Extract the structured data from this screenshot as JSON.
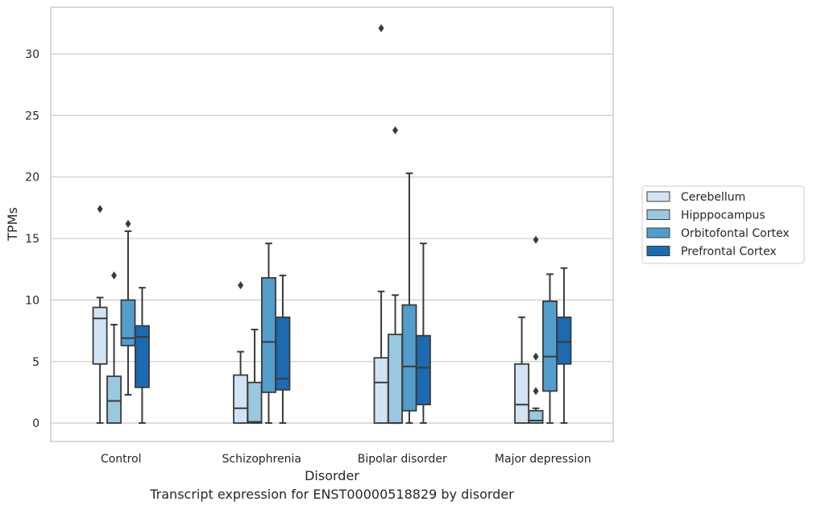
{
  "chart_data": {
    "type": "boxplot",
    "xlabel": "Disorder",
    "ylabel": "TPMs",
    "caption": "Transcript expression for ENST00000518829 by disorder",
    "categories": [
      "Control",
      "Schizophrenia",
      "Bipolar disorder",
      "Major depression"
    ],
    "ylim": [
      -1.5,
      33.8
    ],
    "yticks": [
      0,
      5,
      10,
      15,
      20,
      25,
      30
    ],
    "grid": true,
    "legend_position": "right",
    "series": [
      {
        "name": "Cerebellum",
        "color": "#d2e3f3",
        "boxes": [
          {
            "whisker_low": 0,
            "q1": 4.8,
            "median": 8.5,
            "q3": 9.4,
            "whisker_high": 10.2,
            "outliers": [
              17.4
            ]
          },
          {
            "whisker_low": 0,
            "q1": 0,
            "median": 1.2,
            "q3": 3.9,
            "whisker_high": 5.8,
            "outliers": [
              11.2
            ]
          },
          {
            "whisker_low": 0,
            "q1": 0,
            "median": 3.3,
            "q3": 5.3,
            "whisker_high": 10.7,
            "outliers": [
              32.1
            ]
          },
          {
            "whisker_low": 0,
            "q1": 0,
            "median": 1.5,
            "q3": 4.8,
            "whisker_high": 8.6,
            "outliers": []
          }
        ]
      },
      {
        "name": "Hipppocampus",
        "color": "#9ac8e0",
        "boxes": [
          {
            "whisker_low": 0,
            "q1": 0,
            "median": 1.8,
            "q3": 3.8,
            "whisker_high": 8.0,
            "outliers": [
              12.0
            ]
          },
          {
            "whisker_low": 0,
            "q1": 0,
            "median": 0.1,
            "q3": 3.3,
            "whisker_high": 7.6,
            "outliers": []
          },
          {
            "whisker_low": 0,
            "q1": 0,
            "median": 0,
            "q3": 7.2,
            "whisker_high": 10.4,
            "outliers": [
              23.8
            ]
          },
          {
            "whisker_low": 0,
            "q1": 0,
            "median": 0.2,
            "q3": 1.0,
            "whisker_high": 1.2,
            "outliers": [
              2.6,
              5.4,
              14.9
            ]
          }
        ]
      },
      {
        "name": "Orbitofontal Cortex",
        "color": "#529dcc",
        "boxes": [
          {
            "whisker_low": 2.3,
            "q1": 6.3,
            "median": 6.9,
            "q3": 10.0,
            "whisker_high": 15.6,
            "outliers": [
              16.2
            ]
          },
          {
            "whisker_low": 0,
            "q1": 2.5,
            "median": 6.6,
            "q3": 11.8,
            "whisker_high": 14.6,
            "outliers": []
          },
          {
            "whisker_low": 0,
            "q1": 1.0,
            "median": 4.6,
            "q3": 9.6,
            "whisker_high": 20.3,
            "outliers": []
          },
          {
            "whisker_low": 0,
            "q1": 2.6,
            "median": 5.4,
            "q3": 9.9,
            "whisker_high": 12.1,
            "outliers": []
          }
        ]
      },
      {
        "name": "Prefrontal Cortex",
        "color": "#1c6aaf",
        "boxes": [
          {
            "whisker_low": 0,
            "q1": 2.9,
            "median": 7.0,
            "q3": 7.9,
            "whisker_high": 11.0,
            "outliers": []
          },
          {
            "whisker_low": 0,
            "q1": 2.7,
            "median": 3.6,
            "q3": 8.6,
            "whisker_high": 12.0,
            "outliers": []
          },
          {
            "whisker_low": 0,
            "q1": 1.5,
            "median": 4.5,
            "q3": 7.1,
            "whisker_high": 14.6,
            "outliers": []
          },
          {
            "whisker_low": 0,
            "q1": 4.8,
            "median": 6.6,
            "q3": 8.6,
            "whisker_high": 12.6,
            "outliers": []
          }
        ]
      }
    ]
  }
}
